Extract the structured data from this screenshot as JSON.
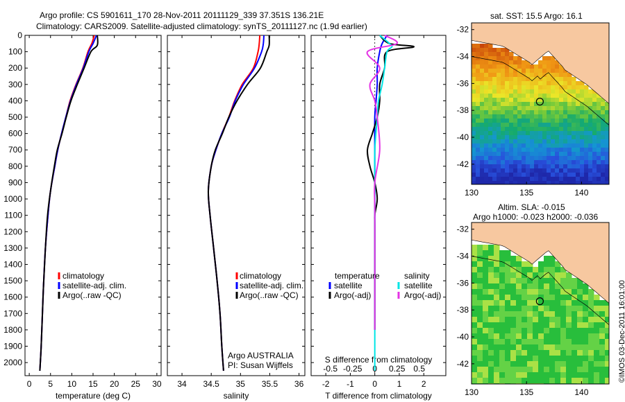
{
  "title": {
    "line1": "Argo profile: CS 5901611_170 28-Nov-2011 20111129_339 37.351S 136.21E",
    "line2": "Climatology: CARS2009. Satellite-adjusted climatology: synTS_20111127.nc (1.9d earlier)"
  },
  "colors": {
    "climatology": "#ff0000",
    "satellite": "#0000ff",
    "argo": "#000000",
    "sal_satellite": "#00e5e5",
    "sal_argo": "#e533e5",
    "land": "#f7c8a0"
  },
  "legend": {
    "climatology": "climatology",
    "satellite": "satellite-adj. clim.",
    "argo": "Argo(..raw -QC)"
  },
  "diff_legend": {
    "temp_header": "temperature",
    "sal_header": "salinity",
    "satellite": "satellite",
    "argo": "Argo(-adj)"
  },
  "annotation": {
    "line1": "Argo AUSTRALIA",
    "line2": "PI: Susan Wijffels"
  },
  "map_top": {
    "title": "sat. SST: 15.5 Argo: 16.1"
  },
  "map_bottom": {
    "title1": "Altim. SLA: -0.015",
    "title2": "Argo h1000: -0.023 h2000: -0.036"
  },
  "credit": "©IMOS 03-Dec-2011 16:01:00",
  "chart_data": [
    {
      "type": "line",
      "xlabel": "temperature (deg C)",
      "ylabel": "",
      "xlim": [
        -1,
        31
      ],
      "ylim": [
        2080,
        0
      ],
      "xticks": [
        0,
        5,
        10,
        15,
        20,
        25,
        30
      ],
      "yticks": [
        0,
        100,
        200,
        300,
        400,
        500,
        600,
        700,
        800,
        900,
        1000,
        1100,
        1200,
        1300,
        1400,
        1500,
        1600,
        1700,
        1800,
        1900,
        2000
      ],
      "series": [
        {
          "name": "climatology",
          "x": [
            15.3,
            14.7,
            13.8,
            12.6,
            11.0,
            9.6,
            8.6,
            7.6,
            6.7,
            6.0,
            5.0,
            4.4,
            3.8,
            3.4,
            3.1,
            2.8,
            2.5
          ],
          "y": [
            0,
            50,
            100,
            200,
            300,
            400,
            500,
            600,
            700,
            800,
            950,
            1100,
            1300,
            1500,
            1700,
            1900,
            2050
          ]
        },
        {
          "name": "satellite-adj. clim.",
          "x": [
            15.8,
            15.0,
            14.0,
            12.7,
            11.1,
            9.7,
            8.6,
            7.6,
            6.7,
            6.0,
            5.0,
            4.4,
            3.8,
            3.4,
            3.1,
            2.8,
            2.5
          ],
          "y": [
            0,
            50,
            100,
            200,
            300,
            400,
            500,
            600,
            700,
            800,
            950,
            1100,
            1300,
            1500,
            1700,
            1900,
            2050
          ]
        },
        {
          "name": "Argo(..raw -QC)",
          "x": [
            16.0,
            16.0,
            14.5,
            12.9,
            11.3,
            9.8,
            8.7,
            7.7,
            6.6,
            5.9,
            5.0,
            4.3,
            3.8,
            3.4,
            3.1,
            2.8,
            2.5
          ],
          "y": [
            0,
            60,
            100,
            200,
            300,
            400,
            500,
            600,
            700,
            800,
            950,
            1100,
            1300,
            1500,
            1700,
            1900,
            2050
          ]
        }
      ]
    },
    {
      "type": "line",
      "xlabel": "salinity",
      "ylabel": "",
      "xlim": [
        33.75,
        36.1
      ],
      "ylim": [
        2080,
        0
      ],
      "xticks": [
        34,
        34.5,
        35,
        35.5,
        36
      ],
      "xticklabels": [
        "34",
        "34.5",
        "35",
        "35.5",
        "36"
      ],
      "series": [
        {
          "name": "climatology",
          "x": [
            35.33,
            35.32,
            35.3,
            35.22,
            35.03,
            34.9,
            34.8,
            34.68,
            34.58,
            34.5,
            34.45,
            34.48,
            34.54,
            34.6,
            34.65,
            34.68,
            34.71
          ],
          "y": [
            0,
            50,
            100,
            200,
            300,
            400,
            500,
            600,
            700,
            800,
            950,
            1100,
            1300,
            1500,
            1700,
            1900,
            2050
          ]
        },
        {
          "name": "satellite-adj. clim.",
          "x": [
            35.4,
            35.39,
            35.36,
            35.24,
            35.05,
            34.91,
            34.81,
            34.68,
            34.58,
            34.5,
            34.45,
            34.48,
            34.54,
            34.6,
            34.65,
            34.68,
            34.71
          ],
          "y": [
            0,
            50,
            100,
            200,
            300,
            400,
            500,
            600,
            700,
            800,
            950,
            1100,
            1300,
            1500,
            1700,
            1900,
            2050
          ]
        },
        {
          "name": "Argo(..raw -QC)",
          "x": [
            35.49,
            35.49,
            35.45,
            35.34,
            35.12,
            34.94,
            34.8,
            34.69,
            34.57,
            34.5,
            34.45,
            34.48,
            34.54,
            34.6,
            34.65,
            34.68,
            34.71
          ],
          "y": [
            0,
            60,
            100,
            200,
            300,
            400,
            500,
            600,
            700,
            800,
            950,
            1100,
            1300,
            1500,
            1700,
            1900,
            2050
          ]
        }
      ],
      "annotations": [
        "Argo AUSTRALIA",
        "PI: Susan Wijffels"
      ]
    },
    {
      "type": "line",
      "xlabel": "T difference from climatology",
      "xlabel_top": "S difference from climatology",
      "xlim": [
        -2.6,
        2.9
      ],
      "ylim": [
        2080,
        0
      ],
      "xticks": [
        -2,
        -1,
        0,
        1,
        2
      ],
      "xticks_top": [
        -0.5,
        -0.25,
        0,
        0.25,
        0.5
      ],
      "series": [
        {
          "name": "temperature satellite",
          "x": [
            0.5,
            0.3,
            0.2,
            0.1,
            0.1,
            0.05,
            0.0,
            0.0,
            0.0,
            0.0,
            0.0,
            0.0,
            0.0,
            0.0
          ],
          "y": [
            0,
            50,
            100,
            200,
            300,
            400,
            500,
            700,
            900,
            1100,
            1300,
            1500,
            1700,
            1800
          ]
        },
        {
          "name": "temperature Argo(-adj)",
          "x": [
            0.2,
            0.6,
            1.6,
            0.5,
            0.4,
            0.2,
            0.2,
            0.1,
            -0.1,
            -0.3,
            -0.2,
            0.0,
            0.1,
            0.0,
            0.0,
            0.0
          ],
          "y": [
            0,
            50,
            70,
            100,
            200,
            300,
            400,
            500,
            600,
            700,
            800,
            900,
            1000,
            1100,
            1200,
            1800
          ]
        },
        {
          "name": "salinity satellite",
          "x": [
            0.2,
            0.6,
            0.7,
            0.5,
            0.4,
            0.3,
            0.15,
            0.1,
            0.0,
            0.0,
            0.0,
            0.0,
            0.0,
            0.0,
            0.0
          ],
          "y": [
            0,
            50,
            70,
            100,
            200,
            300,
            400,
            500,
            700,
            900,
            1100,
            1300,
            1500,
            1800,
            2050
          ]
        },
        {
          "name": "salinity Argo(-adj)",
          "x": [
            0.4,
            0.9,
            -0.3,
            0.2,
            -0.2,
            0.0,
            0.1,
            0.2,
            0.0,
            0.0,
            0.0
          ],
          "y": [
            0,
            50,
            100,
            200,
            300,
            400,
            500,
            700,
            900,
            1100,
            1800
          ]
        }
      ],
      "legend": [
        "temperature",
        "satellite",
        "Argo(-adj)",
        "salinity",
        "satellite",
        "Argo(-adj)"
      ]
    },
    {
      "type": "heatmap",
      "title": "sat. SST: 15.5 Argo: 16.1",
      "xticks": [
        130,
        135,
        140
      ],
      "yticks": [
        -32,
        -34,
        -36,
        -38,
        -40,
        -42
      ],
      "xlim": [
        130,
        142.5
      ],
      "ylim": [
        -43.5,
        -31.5
      ],
      "marker": {
        "lon": 136.21,
        "lat": -37.351
      }
    },
    {
      "type": "heatmap",
      "title": "Altim. SLA: -0.015",
      "subtitle": "Argo h1000: -0.023 h2000: -0.036",
      "xticks": [
        130,
        135,
        140
      ],
      "yticks": [
        -32,
        -34,
        -36,
        -38,
        -40,
        -42
      ],
      "xlim": [
        130,
        142.5
      ],
      "ylim": [
        -43.5,
        -31.5
      ],
      "marker": {
        "lon": 136.21,
        "lat": -37.351
      }
    }
  ]
}
